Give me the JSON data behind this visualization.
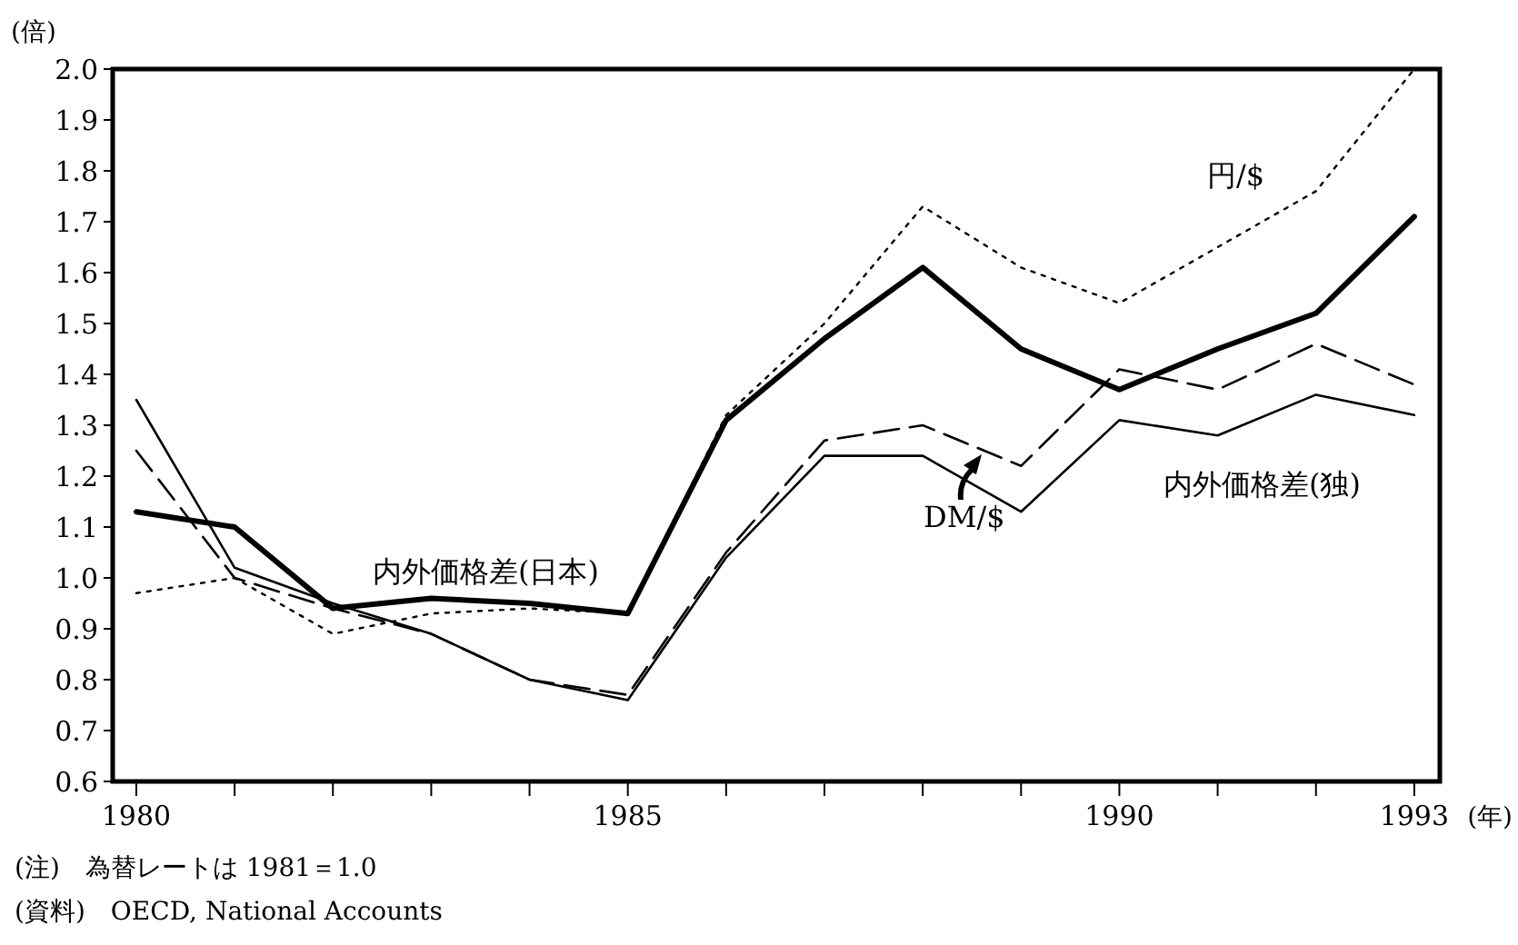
{
  "chart_data": {
    "type": "line",
    "ylabel": "(倍)",
    "xlabel": "(年)",
    "x": [
      1980,
      1981,
      1982,
      1983,
      1984,
      1985,
      1986,
      1987,
      1988,
      1989,
      1990,
      1991,
      1992,
      1993
    ],
    "xlim": [
      1979.76,
      1993.26
    ],
    "xticks": [
      1980,
      {
        "value": 1981,
        "label": null
      },
      {
        "value": 1982,
        "label": null
      },
      {
        "value": 1983,
        "label": null
      },
      {
        "value": 1984,
        "label": null
      },
      1985,
      {
        "value": 1986,
        "label": null
      },
      {
        "value": 1987,
        "label": null
      },
      {
        "value": 1988,
        "label": null
      },
      {
        "value": 1989,
        "label": null
      },
      1990,
      {
        "value": 1991,
        "label": null
      },
      {
        "value": 1992,
        "label": null
      },
      1993
    ],
    "ylim": [
      0.6,
      2.0
    ],
    "yticks": [
      0.6,
      0.7,
      0.8,
      0.9,
      {
        "value": 1.0,
        "label": "1.0"
      },
      1.1,
      1.2,
      1.3,
      1.4,
      1.5,
      1.6,
      1.7,
      1.8,
      1.9,
      {
        "value": 2.0,
        "label": "2.0"
      }
    ],
    "series": [
      {
        "name": "内外価格差(日本)",
        "color": "#000000",
        "line_style": "solid",
        "values": [
          1.13,
          1.1,
          0.94,
          0.96,
          0.95,
          0.93,
          1.31,
          1.47,
          1.61,
          1.45,
          1.37,
          1.45,
          1.52,
          1.71
        ]
      },
      {
        "name": "円/$",
        "color": "#000000",
        "line_style": "dotted",
        "values": [
          0.97,
          1.0,
          0.89,
          0.93,
          0.94,
          0.93,
          1.32,
          1.5,
          1.73,
          1.61,
          1.54,
          1.65,
          1.76,
          2.0
        ]
      },
      {
        "name": "DM/$",
        "color": "#000000",
        "line_style": "dashed",
        "values": [
          1.25,
          1.0,
          0.94,
          0.89,
          0.8,
          0.77,
          1.05,
          1.27,
          1.3,
          1.22,
          1.41,
          1.37,
          1.46,
          1.38
        ]
      },
      {
        "name": "内外価格差(独)",
        "color": "#000000",
        "line_style": "solid",
        "values": [
          1.35,
          1.02,
          0.95,
          0.89,
          0.8,
          0.76,
          1.04,
          1.24,
          1.24,
          1.13,
          1.31,
          1.28,
          1.36,
          1.32
        ]
      }
    ],
    "annotations": [
      "(注)　為替レートは 1981＝1.0",
      "(資料)　OECD, National Accounts"
    ]
  }
}
